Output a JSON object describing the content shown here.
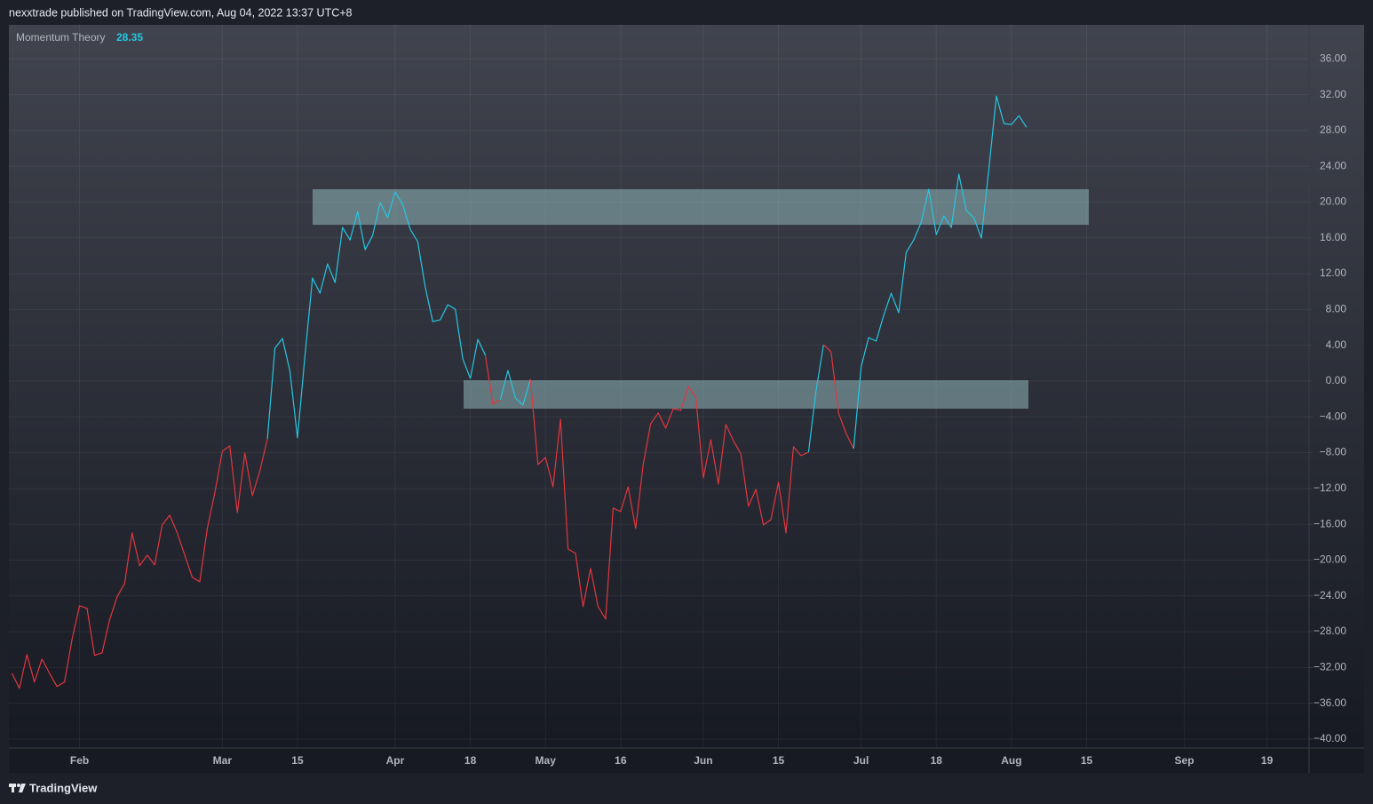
{
  "header": {
    "text": "nexxtrade published on TradingView.com, Aug 04, 2022 13:37 UTC+8"
  },
  "footer": {
    "brand": "TradingView"
  },
  "chart_data": {
    "type": "line",
    "ylim": [
      -41,
      39.8
    ],
    "yticks": [
      {
        "value": 36,
        "label": "36.00"
      },
      {
        "value": 32,
        "label": "32.00"
      },
      {
        "value": 28,
        "label": "28.00"
      },
      {
        "value": 24,
        "label": "24.00"
      },
      {
        "value": 20,
        "label": "20.00"
      },
      {
        "value": 16,
        "label": "16.00"
      },
      {
        "value": 12,
        "label": "12.00"
      },
      {
        "value": 8,
        "label": "8.00"
      },
      {
        "value": 4,
        "label": "4.00"
      },
      {
        "value": 0,
        "label": "0.00"
      },
      {
        "value": -4,
        "label": "−4.00"
      },
      {
        "value": -8,
        "label": "−8.00"
      },
      {
        "value": -12,
        "label": "−12.00"
      },
      {
        "value": -16,
        "label": "−16.00"
      },
      {
        "value": -20,
        "label": "−20.00"
      },
      {
        "value": -24,
        "label": "−24.00"
      },
      {
        "value": -28,
        "label": "−28.00"
      },
      {
        "value": -32,
        "label": "−32.00"
      },
      {
        "value": -36,
        "label": "−36.00"
      },
      {
        "value": -40,
        "label": "−40.00"
      }
    ],
    "grid": true,
    "categories": [
      null,
      null,
      null,
      null,
      null,
      null,
      null,
      null,
      null,
      "Feb",
      null,
      null,
      null,
      null,
      null,
      null,
      null,
      null,
      null,
      null,
      null,
      null,
      null,
      null,
      null,
      null,
      null,
      null,
      "Mar",
      null,
      null,
      null,
      null,
      null,
      null,
      null,
      null,
      null,
      "15",
      null,
      null,
      null,
      null,
      null,
      null,
      null,
      null,
      null,
      null,
      null,
      null,
      "Apr",
      null,
      null,
      null,
      null,
      null,
      null,
      null,
      null,
      null,
      "18",
      null,
      null,
      null,
      null,
      null,
      null,
      null,
      null,
      null,
      "May",
      null,
      null,
      null,
      null,
      null,
      null,
      null,
      null,
      null,
      "16",
      null,
      null,
      null,
      null,
      null,
      null,
      null,
      null,
      null,
      null,
      "Jun",
      null,
      null,
      null,
      null,
      null,
      null,
      null,
      null,
      null,
      "15",
      null,
      null,
      null,
      null,
      null,
      null,
      null,
      null,
      null,
      null,
      "Jul",
      null,
      null,
      null,
      null,
      null,
      null,
      null,
      null,
      null,
      "18",
      null,
      null,
      null,
      null,
      null,
      null,
      null,
      null,
      null,
      "Aug",
      null,
      null,
      null,
      null,
      null,
      null,
      null,
      null,
      null,
      "15",
      null,
      null,
      null,
      null,
      null,
      null,
      null,
      null,
      null,
      null,
      null,
      null,
      "Sep",
      null,
      null,
      null,
      null,
      null,
      null,
      null,
      null,
      null,
      null,
      "19",
      null,
      null,
      null,
      null,
      null
    ],
    "series": [
      {
        "name": "Momentum Theory",
        "values": [
          -32.64,
          -34.33,
          -30.56,
          -33.63,
          -31.05,
          -32.64,
          -34.13,
          -33.63,
          -28.87,
          -25.1,
          -25.4,
          -30.65,
          -30.36,
          -26.69,
          -24.11,
          -22.62,
          -16.96,
          -20.63,
          -19.44,
          -20.54,
          -16.07,
          -14.98,
          -16.96,
          -19.44,
          -21.92,
          -22.42,
          -16.47,
          -12.5,
          -7.84,
          -7.24,
          -14.68,
          -8.04,
          -12.8,
          -10.02,
          -6.45,
          3.67,
          4.76,
          1.09,
          -6.35,
          2.88,
          11.51,
          9.82,
          13.1,
          11.01,
          17.16,
          15.77,
          18.95,
          14.68,
          16.27,
          19.94,
          18.25,
          21.13,
          19.74,
          16.96,
          15.58,
          10.52,
          6.65,
          6.85,
          8.53,
          8.04,
          2.48,
          0.3,
          4.66,
          2.88,
          -2.58,
          -2.08,
          1.19,
          -1.88,
          -2.68,
          0.2,
          -9.33,
          -8.53,
          -11.81,
          -4.27,
          -18.75,
          -19.25,
          -25.2,
          -20.93,
          -25.2,
          -26.59,
          -14.19,
          -14.58,
          -11.81,
          -16.47,
          -9.33,
          -4.76,
          -3.57,
          -5.26,
          -3.08,
          -3.27,
          -0.6,
          -1.79,
          -10.81,
          -6.55,
          -11.51,
          -4.86,
          -6.65,
          -8.13,
          -13.99,
          -12.1,
          -16.07,
          -15.48,
          -11.31,
          -16.96,
          -7.34,
          -8.33,
          -7.94,
          -1.09,
          4.07,
          3.27,
          -3.57,
          -5.85,
          -7.54,
          1.59,
          4.86,
          4.46,
          7.34,
          9.82,
          7.64,
          14.38,
          15.77,
          17.76,
          21.43,
          16.37,
          18.45,
          17.16,
          23.12,
          19.05,
          18.25,
          15.97,
          23.71,
          31.85,
          28.77,
          28.67,
          29.66,
          28.35,
          null,
          null,
          null,
          null,
          null,
          null,
          null,
          null,
          null,
          null,
          null,
          null,
          null,
          null,
          null,
          null,
          null,
          null,
          null,
          null,
          null,
          null,
          null,
          null,
          null,
          null,
          null,
          null,
          null,
          null,
          null,
          null,
          null,
          null,
          null,
          null,
          null
        ],
        "colors": [
          "#e2363e",
          "#e2363e",
          "#e2363e",
          "#e2363e",
          "#e2363e",
          "#e2363e",
          "#e2363e",
          "#e2363e",
          "#e2363e",
          "#e2363e",
          "#e2363e",
          "#e2363e",
          "#e2363e",
          "#e2363e",
          "#e2363e",
          "#e2363e",
          "#e2363e",
          "#e2363e",
          "#e2363e",
          "#e2363e",
          "#e2363e",
          "#e2363e",
          "#e2363e",
          "#e2363e",
          "#e2363e",
          "#e2363e",
          "#e2363e",
          "#e2363e",
          "#e2363e",
          "#e2363e",
          "#e2363e",
          "#e2363e",
          "#e2363e",
          "#e2363e",
          "#e2363e",
          "#26c6e2",
          "#26c6e2",
          "#26c6e2",
          "#26c6e2",
          "#26c6e2",
          "#26c6e2",
          "#26c6e2",
          "#26c6e2",
          "#26c6e2",
          "#26c6e2",
          "#26c6e2",
          "#26c6e2",
          "#26c6e2",
          "#26c6e2",
          "#26c6e2",
          "#26c6e2",
          "#26c6e2",
          "#26c6e2",
          "#26c6e2",
          "#26c6e2",
          "#26c6e2",
          "#26c6e2",
          "#26c6e2",
          "#26c6e2",
          "#26c6e2",
          "#26c6e2",
          "#26c6e2",
          "#26c6e2",
          "#26c6e2",
          "#e2363e",
          "#e2363e",
          "#26c6e2",
          "#26c6e2",
          "#26c6e2",
          "#26c6e2",
          "#e2363e",
          "#e2363e",
          "#e2363e",
          "#e2363e",
          "#e2363e",
          "#e2363e",
          "#e2363e",
          "#e2363e",
          "#e2363e",
          "#e2363e",
          "#e2363e",
          "#e2363e",
          "#e2363e",
          "#e2363e",
          "#e2363e",
          "#e2363e",
          "#e2363e",
          "#e2363e",
          "#e2363e",
          "#e2363e",
          "#e2363e",
          "#e2363e",
          "#e2363e",
          "#e2363e",
          "#e2363e",
          "#e2363e",
          "#e2363e",
          "#e2363e",
          "#e2363e",
          "#e2363e",
          "#e2363e",
          "#e2363e",
          "#e2363e",
          "#e2363e",
          "#e2363e",
          "#e2363e",
          "#e2363e",
          "#26c6e2",
          "#26c6e2",
          "#e2363e",
          "#e2363e",
          "#e2363e",
          "#e2363e",
          "#26c6e2",
          "#26c6e2",
          "#26c6e2",
          "#26c6e2",
          "#26c6e2",
          "#26c6e2",
          "#26c6e2",
          "#26c6e2",
          "#26c6e2",
          "#26c6e2",
          "#26c6e2",
          "#26c6e2",
          "#26c6e2",
          "#26c6e2",
          "#26c6e2",
          "#26c6e2",
          "#26c6e2",
          "#26c6e2",
          "#26c6e2",
          "#26c6e2",
          "#26c6e2",
          "#26c6e2",
          "#26c6e2",
          null,
          null,
          null,
          null,
          null,
          null,
          null,
          null,
          null,
          null,
          null,
          null,
          null,
          null,
          null,
          null,
          null,
          null,
          null,
          null,
          null,
          null,
          null,
          null,
          null,
          null,
          null,
          null,
          null,
          null,
          null,
          null,
          null,
          null,
          null,
          null,
          null
        ]
      }
    ]
  }
}
